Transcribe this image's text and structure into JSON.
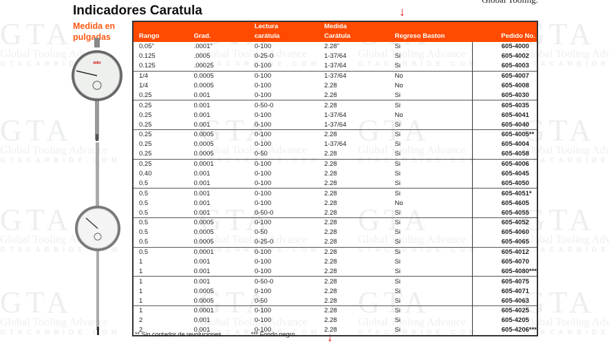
{
  "header": {
    "title": "Indicadores Caratula",
    "subtitle": "Medida en pulgadas",
    "top_right_text": "Global Tooling."
  },
  "watermark": {
    "logo": "GTA",
    "name": "Global Tooling Advance",
    "site": "GTACARBIDE.COM"
  },
  "colors": {
    "accent": "#ff4a00",
    "subtitle": "#ff5a14",
    "arrow": "#e8141c"
  },
  "icons": {
    "arrow": "arrow-down-icon"
  },
  "table": {
    "headers": [
      [
        "",
        "Rango"
      ],
      [
        "",
        "Grad."
      ],
      [
        "Lectura",
        "carátula"
      ],
      [
        "Medida",
        "Carátula"
      ],
      [
        "",
        "Regreso Baston"
      ],
      [
        "",
        "Pedido No."
      ]
    ],
    "rows": [
      [
        "0.05\"",
        ".0001\"",
        "0-100",
        "2.28\"",
        "Si",
        "605-4000"
      ],
      [
        "0.125",
        ".0005",
        "0-25-0",
        "1-37/64",
        "Si",
        "605-4002"
      ],
      [
        "0.125",
        ".00025",
        "0-100",
        "1-37/64",
        "Si",
        "605-4003"
      ],
      [
        "1/4",
        "0.0005",
        "0-100",
        "1-37/64",
        "No",
        "605-4007"
      ],
      [
        "1/4",
        "0.0005",
        "0-100",
        "2.28",
        "No",
        "605-4008"
      ],
      [
        "0.25",
        "0.001",
        "0-100",
        "2.28",
        "Si",
        "605-4030"
      ],
      [
        "0.25",
        "0.001",
        "0-50-0",
        "2.28",
        "Si",
        "605-4035"
      ],
      [
        "0.25",
        "0.001",
        "0-100",
        "1-37/64",
        "No",
        "605-4041"
      ],
      [
        "0.25",
        "0.001",
        "0-100",
        "1-37/64",
        "Si",
        "605-4040"
      ],
      [
        "0.25",
        "0.0005",
        "0-100",
        "2.28",
        "Si",
        "605-4005**"
      ],
      [
        "0.25",
        "0.0005",
        "0-100",
        "1-37/64",
        "Si",
        "605-4004"
      ],
      [
        "0.25",
        "0.0005",
        "0-50",
        "2.28",
        "Si",
        "605-4058"
      ],
      [
        "0.25",
        "0.0001",
        "0-100",
        "2.28",
        "Si",
        "605-4006"
      ],
      [
        "0.40",
        "0.001",
        "0-100",
        "2.28",
        "Si",
        "605-4045"
      ],
      [
        "0.5",
        "0.001",
        "0-100",
        "2.28",
        "Si",
        "605-4050"
      ],
      [
        "0.5",
        "0.001",
        "0-100",
        "2.28",
        "Si",
        "605-4051*"
      ],
      [
        "0.5",
        "0.001",
        "0-100",
        "2.28",
        "No",
        "605-4605"
      ],
      [
        "0.5",
        "0.001",
        "0-50-0",
        "2.28",
        "Si",
        "605-4055"
      ],
      [
        "0.5",
        "0.0005",
        "0-100",
        "2.28",
        "Si",
        "605-4052"
      ],
      [
        "0.5",
        "0.0005",
        "0-50",
        "2.28",
        "Si",
        "605-4060"
      ],
      [
        "0.5",
        "0.0005",
        "0-25-0",
        "2.28",
        "Si",
        "605-4065"
      ],
      [
        "0.5",
        "0.0001",
        "0-100",
        "2.28",
        "Si",
        "605-4012"
      ],
      [
        "1",
        "0.001",
        "0-100",
        "2.28",
        "Si",
        "605-4070"
      ],
      [
        "1",
        "0.001",
        "0-100",
        "2.28",
        "Si",
        "605-4080***"
      ],
      [
        "1",
        "0.001",
        "0-50-0",
        "2.28",
        "Si",
        "605-4075"
      ],
      [
        "1",
        "0.0005",
        "0-100",
        "2.28",
        "Si",
        "605-4071"
      ],
      [
        "1",
        "0.0005",
        "0-50",
        "2.28",
        "Si",
        "605-4063"
      ],
      [
        "1",
        "0.0001",
        "0-100",
        "2.28",
        "Si",
        "605-4025"
      ],
      [
        "2",
        "0.001",
        "0-100",
        "2.28",
        "Si",
        "605-4205"
      ],
      [
        "2",
        "0.001",
        "0-100",
        "2.28",
        "Si",
        "605-4206***"
      ]
    ]
  },
  "footnotes": [
    "**  Sin contador de revoluciones.",
    "*** Fondo negro"
  ]
}
